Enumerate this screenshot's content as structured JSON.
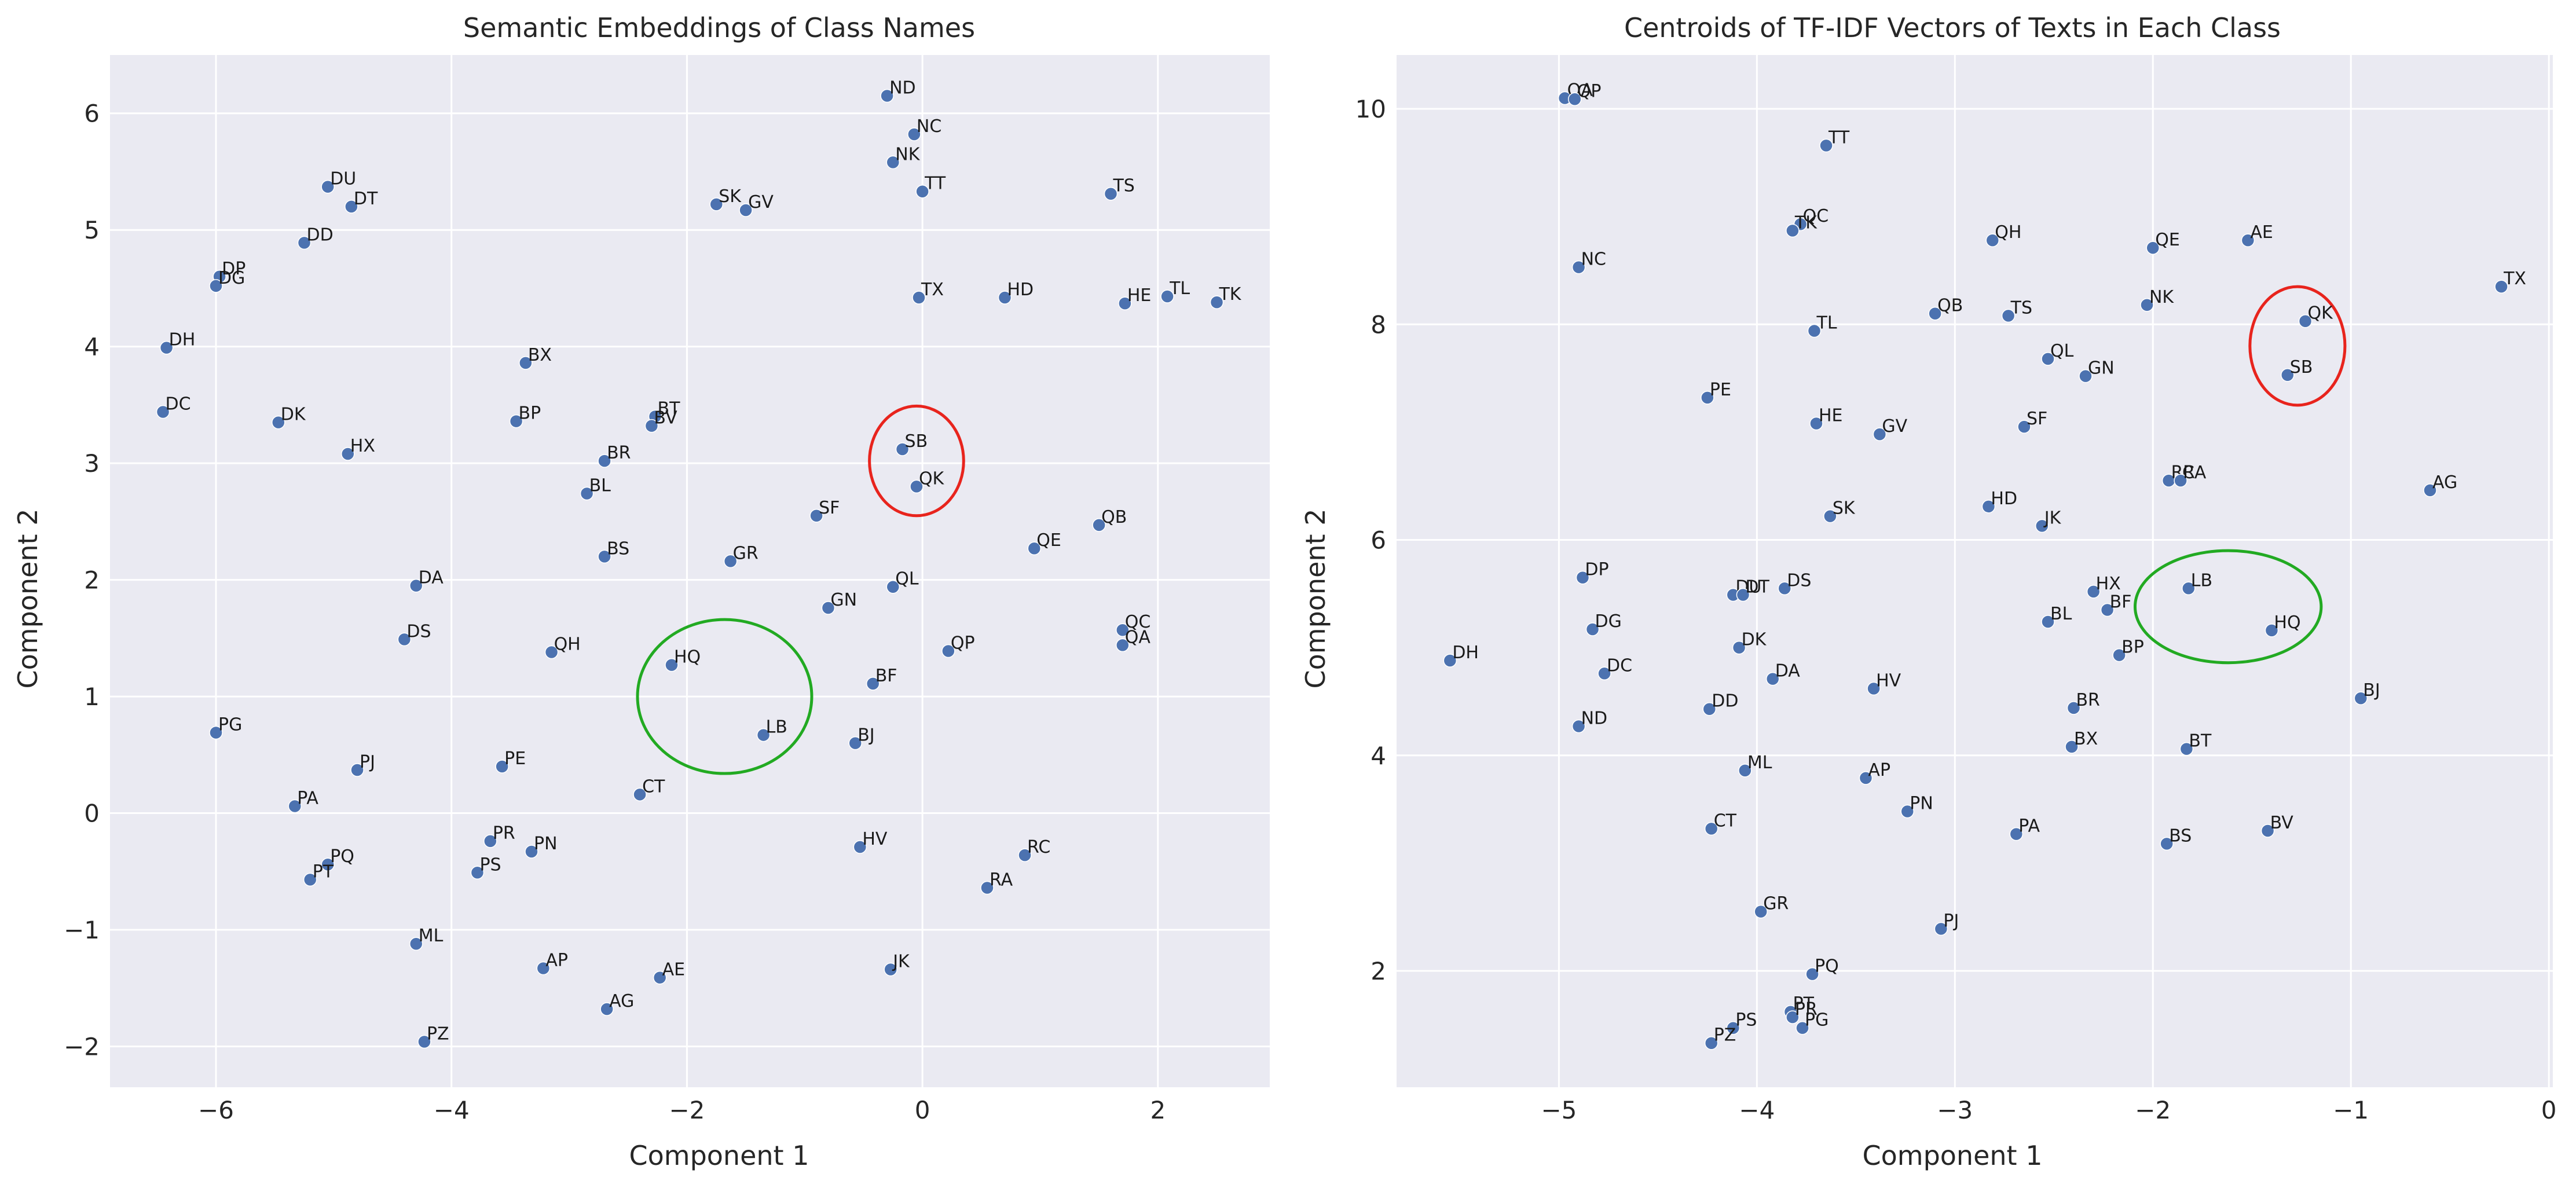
{
  "chart_data": [
    {
      "type": "scatter",
      "title": "Semantic Embeddings of Class Names",
      "xlabel": "Component 1",
      "ylabel": "Component 2",
      "xlim": [
        -6.9,
        2.95
      ],
      "ylim": [
        -2.35,
        6.5
      ],
      "xticks": [
        -6,
        -4,
        -2,
        0,
        2
      ],
      "yticks": [
        -2,
        -1,
        0,
        1,
        2,
        3,
        4,
        5,
        6
      ],
      "grid": true,
      "marker_color": "#4c72b0",
      "points": [
        {
          "label": "ND",
          "x": -0.3,
          "y": 6.15
        },
        {
          "label": "NC",
          "x": -0.07,
          "y": 5.82
        },
        {
          "label": "NK",
          "x": -0.25,
          "y": 5.58
        },
        {
          "label": "TT",
          "x": 0.0,
          "y": 5.33
        },
        {
          "label": "SK",
          "x": -1.75,
          "y": 5.22
        },
        {
          "label": "GV",
          "x": -1.5,
          "y": 5.17
        },
        {
          "label": "TS",
          "x": 1.6,
          "y": 5.31
        },
        {
          "label": "DU",
          "x": -5.05,
          "y": 5.37
        },
        {
          "label": "DT",
          "x": -4.85,
          "y": 5.2
        },
        {
          "label": "DD",
          "x": -5.25,
          "y": 4.89
        },
        {
          "label": "DP",
          "x": -5.97,
          "y": 4.6
        },
        {
          "label": "DG",
          "x": -6.0,
          "y": 4.52
        },
        {
          "label": "TX",
          "x": -0.03,
          "y": 4.42
        },
        {
          "label": "HD",
          "x": 0.7,
          "y": 4.42
        },
        {
          "label": "HE",
          "x": 1.72,
          "y": 4.37
        },
        {
          "label": "TL",
          "x": 2.08,
          "y": 4.43
        },
        {
          "label": "TK",
          "x": 2.5,
          "y": 4.38
        },
        {
          "label": "DH",
          "x": -6.42,
          "y": 3.99
        },
        {
          "label": "BX",
          "x": -3.37,
          "y": 3.86
        },
        {
          "label": "DC",
          "x": -6.45,
          "y": 3.44
        },
        {
          "label": "DK",
          "x": -5.47,
          "y": 3.35
        },
        {
          "label": "HX",
          "x": -4.88,
          "y": 3.08
        },
        {
          "label": "BP",
          "x": -3.45,
          "y": 3.36
        },
        {
          "label": "BT",
          "x": -2.27,
          "y": 3.4
        },
        {
          "label": "BV",
          "x": -2.3,
          "y": 3.32
        },
        {
          "label": "BR",
          "x": -2.7,
          "y": 3.02
        },
        {
          "label": "BL",
          "x": -2.85,
          "y": 2.74
        },
        {
          "label": "SB",
          "x": -0.17,
          "y": 3.12
        },
        {
          "label": "QK",
          "x": -0.05,
          "y": 2.8
        },
        {
          "label": "SF",
          "x": -0.9,
          "y": 2.55
        },
        {
          "label": "QB",
          "x": 1.5,
          "y": 2.47
        },
        {
          "label": "QE",
          "x": 0.95,
          "y": 2.27
        },
        {
          "label": "BS",
          "x": -2.7,
          "y": 2.2
        },
        {
          "label": "GR",
          "x": -1.63,
          "y": 2.16
        },
        {
          "label": "DA",
          "x": -4.3,
          "y": 1.95
        },
        {
          "label": "QL",
          "x": -0.25,
          "y": 1.94
        },
        {
          "label": "GN",
          "x": -0.8,
          "y": 1.76
        },
        {
          "label": "DS",
          "x": -4.4,
          "y": 1.49
        },
        {
          "label": "QC",
          "x": 1.7,
          "y": 1.57
        },
        {
          "label": "QA",
          "x": 1.7,
          "y": 1.44
        },
        {
          "label": "QH",
          "x": -3.15,
          "y": 1.38
        },
        {
          "label": "QP",
          "x": 0.22,
          "y": 1.39
        },
        {
          "label": "HQ",
          "x": -2.13,
          "y": 1.27
        },
        {
          "label": "BF",
          "x": -0.42,
          "y": 1.11
        },
        {
          "label": "LB",
          "x": -1.35,
          "y": 0.67
        },
        {
          "label": "PG",
          "x": -6.0,
          "y": 0.69
        },
        {
          "label": "BJ",
          "x": -0.57,
          "y": 0.6
        },
        {
          "label": "PJ",
          "x": -4.8,
          "y": 0.37
        },
        {
          "label": "PE",
          "x": -3.57,
          "y": 0.4
        },
        {
          "label": "CT",
          "x": -2.4,
          "y": 0.16
        },
        {
          "label": "PA",
          "x": -5.33,
          "y": 0.06
        },
        {
          "label": "PR",
          "x": -3.67,
          "y": -0.24
        },
        {
          "label": "PN",
          "x": -3.32,
          "y": -0.33
        },
        {
          "label": "HV",
          "x": -0.53,
          "y": -0.29
        },
        {
          "label": "RC",
          "x": 0.87,
          "y": -0.36
        },
        {
          "label": "PQ",
          "x": -5.05,
          "y": -0.44
        },
        {
          "label": "PS",
          "x": -3.78,
          "y": -0.51
        },
        {
          "label": "PT",
          "x": -5.2,
          "y": -0.57
        },
        {
          "label": "RA",
          "x": 0.55,
          "y": -0.64
        },
        {
          "label": "ML",
          "x": -4.3,
          "y": -1.12
        },
        {
          "label": "AP",
          "x": -3.22,
          "y": -1.33
        },
        {
          "label": "AE",
          "x": -2.23,
          "y": -1.41
        },
        {
          "label": "JK",
          "x": -0.27,
          "y": -1.34
        },
        {
          "label": "AG",
          "x": -2.68,
          "y": -1.68
        },
        {
          "label": "PZ",
          "x": -4.23,
          "y": -1.96
        }
      ],
      "annotations": [
        {
          "shape": "ellipse",
          "color": "#e8241d",
          "cx": -0.05,
          "cy": 3.02,
          "rx": 0.4,
          "ry": 0.47
        },
        {
          "shape": "ellipse",
          "color": "#22aa22",
          "cx": -1.68,
          "cy": 1.0,
          "rx": 0.74,
          "ry": 0.66
        }
      ]
    },
    {
      "type": "scatter",
      "title": "Centroids of TF-IDF Vectors of Texts in Each Class",
      "xlabel": "Component 1",
      "ylabel": "Component 2",
      "xlim": [
        -5.82,
        0.02
      ],
      "ylim": [
        0.92,
        10.5
      ],
      "xticks": [
        -5,
        -4,
        -3,
        -2,
        -1,
        0
      ],
      "yticks": [
        2,
        4,
        6,
        8,
        10
      ],
      "grid": true,
      "marker_color": "#4c72b0",
      "points": [
        {
          "label": "QA",
          "x": -4.97,
          "y": 10.1
        },
        {
          "label": "QP",
          "x": -4.92,
          "y": 10.09
        },
        {
          "label": "TT",
          "x": -3.65,
          "y": 9.66
        },
        {
          "label": "QC",
          "x": -3.78,
          "y": 8.93
        },
        {
          "label": "TK",
          "x": -3.82,
          "y": 8.87
        },
        {
          "label": "QH",
          "x": -2.81,
          "y": 8.78
        },
        {
          "label": "QE",
          "x": -2.0,
          "y": 8.71
        },
        {
          "label": "AE",
          "x": -1.52,
          "y": 8.78
        },
        {
          "label": "NC",
          "x": -4.9,
          "y": 8.53
        },
        {
          "label": "TX",
          "x": -0.24,
          "y": 8.35
        },
        {
          "label": "NK",
          "x": -2.03,
          "y": 8.18
        },
        {
          "label": "QB",
          "x": -3.1,
          "y": 8.1
        },
        {
          "label": "TS",
          "x": -2.73,
          "y": 8.08
        },
        {
          "label": "QK",
          "x": -1.23,
          "y": 8.03
        },
        {
          "label": "TL",
          "x": -3.71,
          "y": 7.94
        },
        {
          "label": "QL",
          "x": -2.53,
          "y": 7.68
        },
        {
          "label": "SB",
          "x": -1.32,
          "y": 7.53
        },
        {
          "label": "GN",
          "x": -2.34,
          "y": 7.52
        },
        {
          "label": "PE",
          "x": -4.25,
          "y": 7.32
        },
        {
          "label": "HE",
          "x": -3.7,
          "y": 7.08
        },
        {
          "label": "SF",
          "x": -2.65,
          "y": 7.05
        },
        {
          "label": "GV",
          "x": -3.38,
          "y": 6.98
        },
        {
          "label": "RC",
          "x": -1.92,
          "y": 6.55
        },
        {
          "label": "RA",
          "x": -1.86,
          "y": 6.55
        },
        {
          "label": "AG",
          "x": -0.6,
          "y": 6.46
        },
        {
          "label": "HD",
          "x": -2.83,
          "y": 6.31
        },
        {
          "label": "SK",
          "x": -3.63,
          "y": 6.22
        },
        {
          "label": "JK",
          "x": -2.56,
          "y": 6.13
        },
        {
          "label": "DP",
          "x": -4.88,
          "y": 5.65
        },
        {
          "label": "DS",
          "x": -3.86,
          "y": 5.55
        },
        {
          "label": "HX",
          "x": -2.3,
          "y": 5.52
        },
        {
          "label": "LB",
          "x": -1.82,
          "y": 5.55
        },
        {
          "label": "DU",
          "x": -4.12,
          "y": 5.49
        },
        {
          "label": "DT",
          "x": -4.07,
          "y": 5.49
        },
        {
          "label": "BF",
          "x": -2.23,
          "y": 5.35
        },
        {
          "label": "BL",
          "x": -2.53,
          "y": 5.24
        },
        {
          "label": "DG",
          "x": -4.83,
          "y": 5.17
        },
        {
          "label": "HQ",
          "x": -1.4,
          "y": 5.16
        },
        {
          "label": "DK",
          "x": -4.09,
          "y": 5.0
        },
        {
          "label": "BP",
          "x": -2.17,
          "y": 4.93
        },
        {
          "label": "DH",
          "x": -5.55,
          "y": 4.88
        },
        {
          "label": "DC",
          "x": -4.77,
          "y": 4.76
        },
        {
          "label": "DA",
          "x": -3.92,
          "y": 4.71
        },
        {
          "label": "HV",
          "x": -3.41,
          "y": 4.62
        },
        {
          "label": "BJ",
          "x": -0.95,
          "y": 4.53
        },
        {
          "label": "BR",
          "x": -2.4,
          "y": 4.44
        },
        {
          "label": "DD",
          "x": -4.24,
          "y": 4.43
        },
        {
          "label": "ND",
          "x": -4.9,
          "y": 4.27
        },
        {
          "label": "BX",
          "x": -2.41,
          "y": 4.08
        },
        {
          "label": "BT",
          "x": -1.83,
          "y": 4.06
        },
        {
          "label": "ML",
          "x": -4.06,
          "y": 3.86
        },
        {
          "label": "AP",
          "x": -3.45,
          "y": 3.79
        },
        {
          "label": "PN",
          "x": -3.24,
          "y": 3.48
        },
        {
          "label": "CT",
          "x": -4.23,
          "y": 3.32
        },
        {
          "label": "BV",
          "x": -1.42,
          "y": 3.3
        },
        {
          "label": "PA",
          "x": -2.69,
          "y": 3.27
        },
        {
          "label": "BS",
          "x": -1.93,
          "y": 3.18
        },
        {
          "label": "GR",
          "x": -3.98,
          "y": 2.55
        },
        {
          "label": "PJ",
          "x": -3.07,
          "y": 2.39
        },
        {
          "label": "PQ",
          "x": -3.72,
          "y": 1.97
        },
        {
          "label": "PT",
          "x": -3.83,
          "y": 1.62
        },
        {
          "label": "PR",
          "x": -3.82,
          "y": 1.57
        },
        {
          "label": "PS",
          "x": -4.12,
          "y": 1.47
        },
        {
          "label": "PG",
          "x": -3.77,
          "y": 1.47
        },
        {
          "label": "PZ",
          "x": -4.23,
          "y": 1.33
        }
      ],
      "annotations": [
        {
          "shape": "ellipse",
          "color": "#e8241d",
          "cx": -1.27,
          "cy": 7.8,
          "rx": 0.24,
          "ry": 0.55
        },
        {
          "shape": "ellipse",
          "color": "#22aa22",
          "cx": -1.62,
          "cy": 5.38,
          "rx": 0.47,
          "ry": 0.52
        }
      ]
    }
  ]
}
